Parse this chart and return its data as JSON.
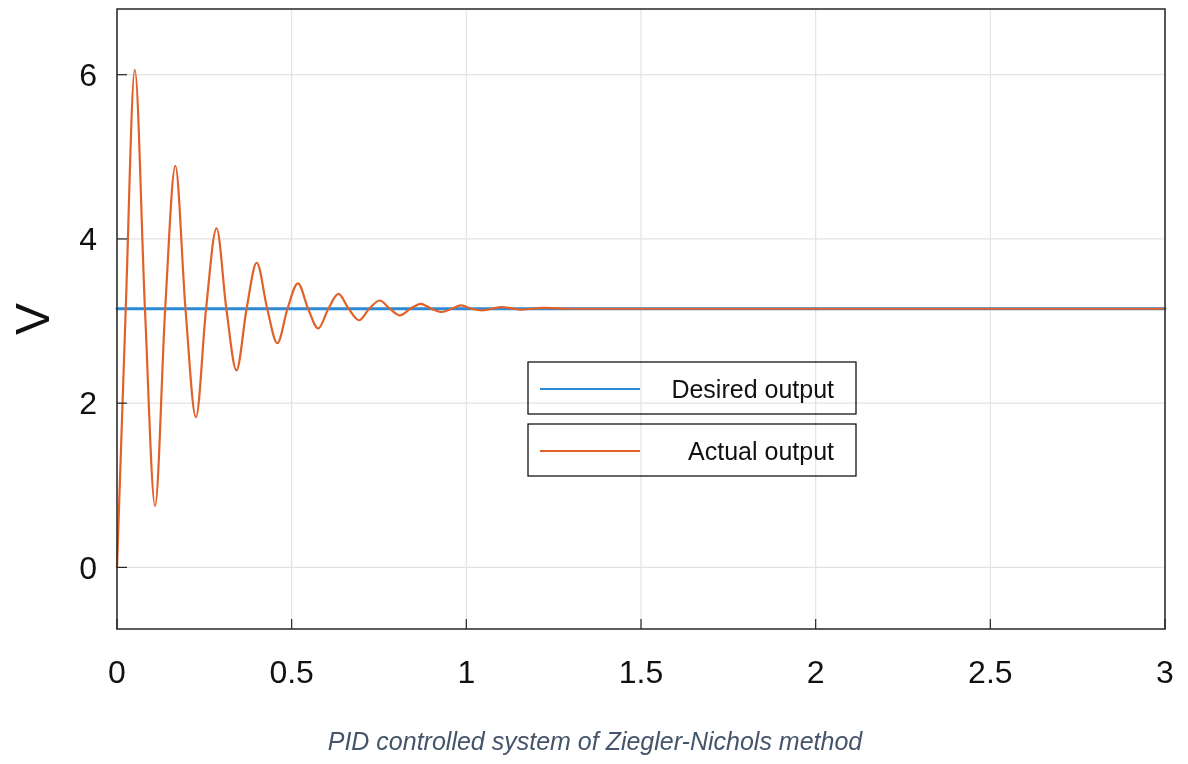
{
  "chart_data": {
    "type": "line",
    "ylabel": "V",
    "annotations": [
      "PID controlled system of Ziegler-Nichols method"
    ],
    "xlim": [
      0,
      3
    ],
    "ylim": [
      -0.75,
      6.8
    ],
    "xticks": [
      0,
      0.5,
      1,
      1.5,
      2,
      2.5,
      3
    ],
    "yticks": [
      0,
      2,
      4,
      6
    ],
    "grid": true,
    "legend": "right",
    "line_style": "solid",
    "series": [
      {
        "name": "Desired output",
        "color": "#2b8ad6",
        "x": [
          0,
          3
        ],
        "values": [
          3.15,
          3.15
        ]
      },
      {
        "name": "Actual output",
        "color": "#e0622a",
        "x": [
          0,
          0.025,
          0.051,
          0.08,
          0.109,
          0.138,
          0.167,
          0.196,
          0.226,
          0.255,
          0.285,
          0.313,
          0.342,
          0.371,
          0.4,
          0.43,
          0.459,
          0.488,
          0.518,
          0.547,
          0.576,
          0.605,
          0.634,
          0.663,
          0.693,
          0.722,
          0.752,
          0.781,
          0.81,
          0.84,
          0.87,
          0.9,
          0.93,
          0.958,
          0.985,
          1.015,
          1.045,
          1.1,
          1.16,
          1.22,
          1.3,
          3
        ],
        "values": [
          0,
          3.15,
          6.06,
          3.15,
          0.75,
          3.15,
          4.89,
          3.15,
          1.83,
          3.15,
          4.13,
          3.15,
          2.4,
          3.15,
          3.71,
          3.15,
          2.73,
          3.15,
          3.46,
          3.15,
          2.91,
          3.15,
          3.33,
          3.15,
          3.01,
          3.15,
          3.25,
          3.15,
          3.07,
          3.15,
          3.21,
          3.15,
          3.11,
          3.15,
          3.19,
          3.15,
          3.13,
          3.17,
          3.14,
          3.16,
          3.15,
          3.15
        ]
      }
    ]
  }
}
